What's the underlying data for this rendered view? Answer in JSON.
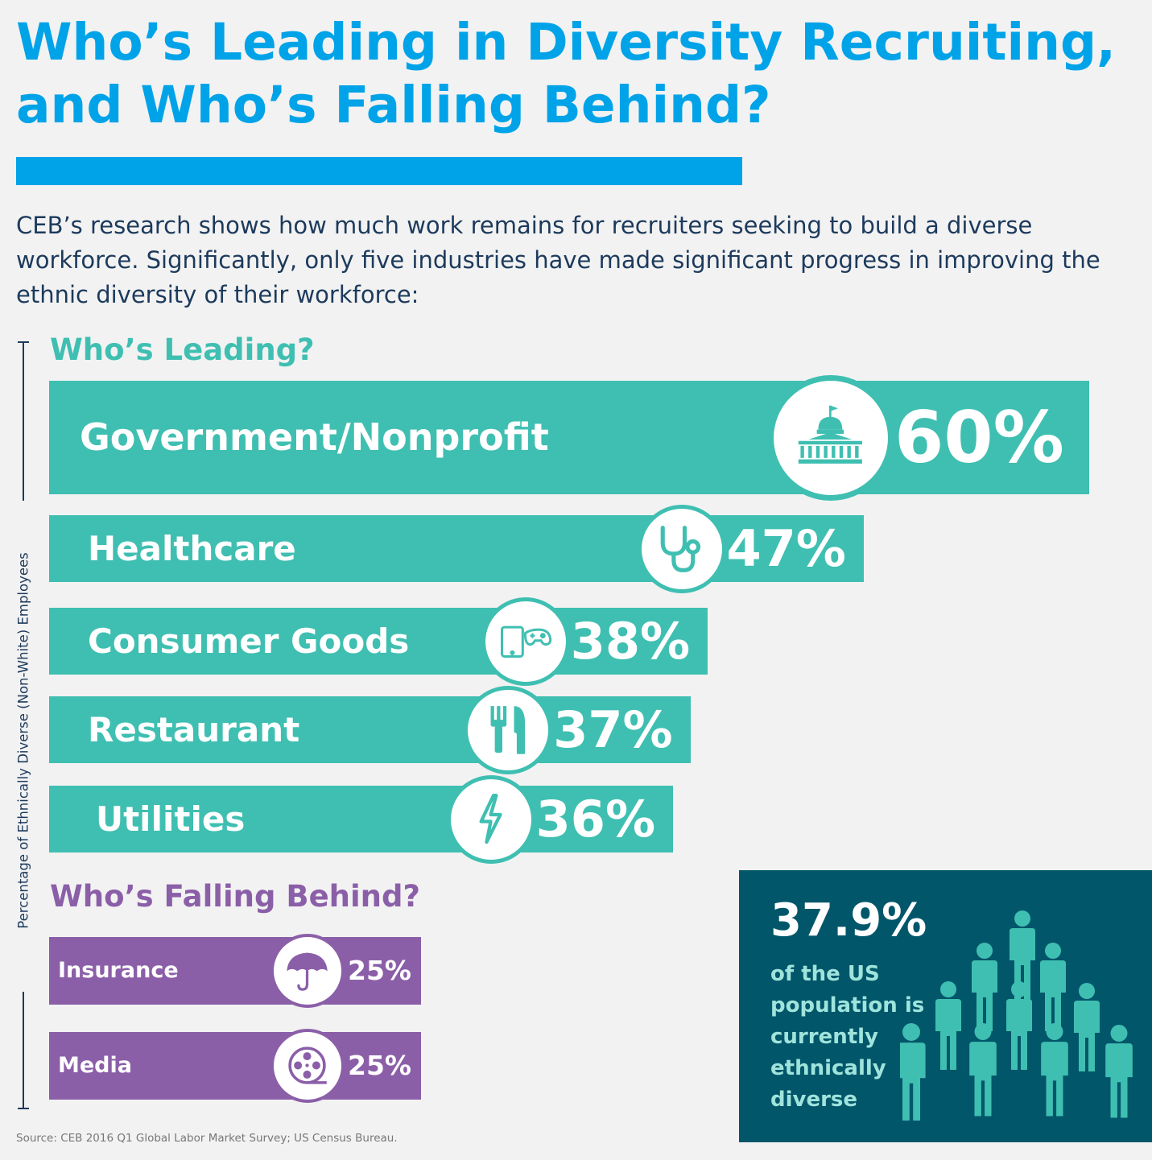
{
  "title": "Who’s Leading in Diversity Recruiting, and Who’s Falling Behind?",
  "intro": "CEB’s research shows how much work remains for recruiters seeking to build a diverse workforce. Significantly, only five industries have made significant progress in improving the ethnic diversity of their workforce:",
  "colors": {
    "title_blue": "#00a3e8",
    "leading_teal": "#3fbfb1",
    "falling_purple": "#8b5fa8",
    "box_navy": "#02566a",
    "text_navy": "#1c3a5c"
  },
  "chart_data": {
    "type": "bar",
    "orientation": "horizontal",
    "ylabel": "Percentage of Ethnically Diverse (Non-White) Employees",
    "groups": [
      {
        "name": "Who’s Leading?",
        "color": "#3fbfb1",
        "categories": [
          "Government/Nonprofit",
          "Healthcare",
          "Consumer Goods",
          "Restaurant",
          "Utilities"
        ],
        "values": [
          60,
          47,
          38,
          37,
          36
        ],
        "value_labels": [
          "60%",
          "47%",
          "38%",
          "37%",
          "36%"
        ],
        "icons": [
          "capitol-building-icon",
          "stethoscope-icon",
          "tablet-gamepad-icon",
          "fork-knife-icon",
          "lightning-bolt-icon"
        ]
      },
      {
        "name": "Who’s Falling Behind?",
        "color": "#8b5fa8",
        "categories": [
          "Insurance",
          "Media"
        ],
        "values": [
          25,
          25
        ],
        "value_labels": [
          "25%",
          "25%"
        ],
        "icons": [
          "umbrella-icon",
          "film-reel-icon"
        ]
      }
    ]
  },
  "population": {
    "value": "37.9%",
    "text": "of the US population is currently ethnically diverse",
    "icon": "people-group-icon"
  },
  "source": "Source: CEB 2016 Q1 Global Labor Market Survey; US Census Bureau."
}
